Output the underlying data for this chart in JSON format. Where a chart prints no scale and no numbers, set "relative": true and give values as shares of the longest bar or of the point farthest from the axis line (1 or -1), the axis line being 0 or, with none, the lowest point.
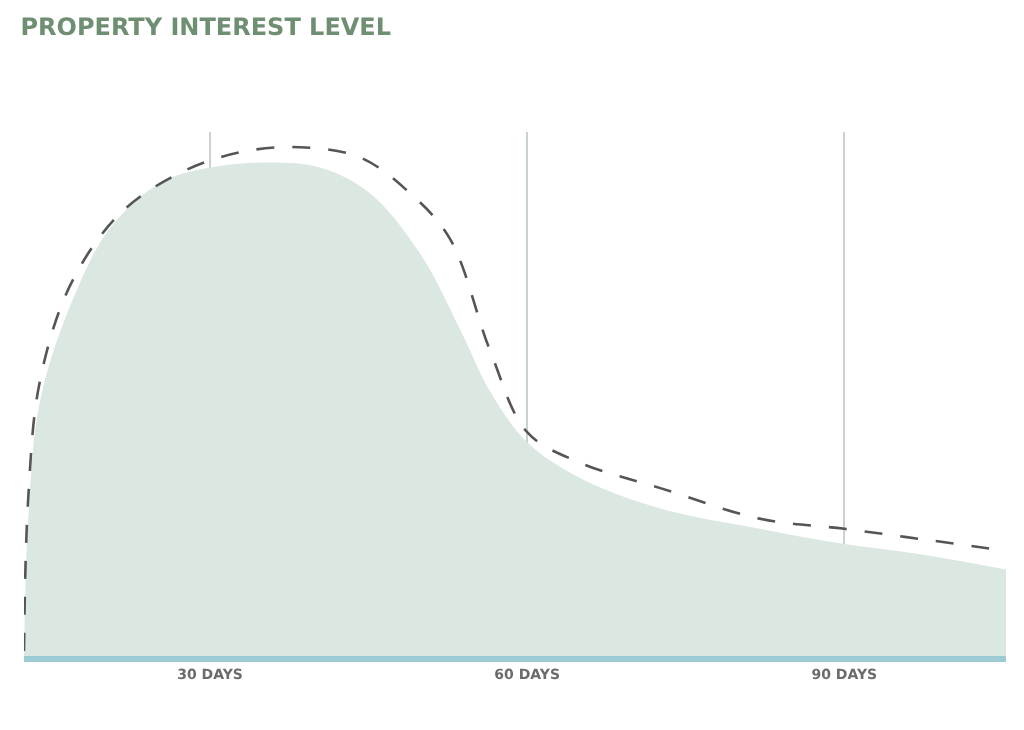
{
  "chart_data": {
    "type": "area",
    "title": "PROPERTY INTEREST LEVEL",
    "relative": true,
    "xlim": [
      12.4,
      105.3
    ],
    "xticks": [
      {
        "value": 30,
        "label": "30 DAYS"
      },
      {
        "value": 60,
        "label": "60 DAYS"
      },
      {
        "value": 90,
        "label": "90 DAYS"
      }
    ],
    "grid": "x",
    "tick_labels": "x",
    "series": [
      {
        "color": "#dbe7e1",
        "x": [
          12.4,
          12.8,
          13.9,
          16.8,
          20.5,
          25.3,
          30,
          35.7,
          40.4,
          45.1,
          49.9,
          53.7,
          56.5,
          60,
          65,
          72.6,
          82,
          90,
          97.2,
          105.3
        ],
        "values": [
          0,
          0.27,
          0.5,
          0.69,
          0.84,
          0.93,
          0.96,
          0.97,
          0.96,
          0.91,
          0.79,
          0.64,
          0.52,
          0.42,
          0.35,
          0.29,
          0.25,
          0.22,
          0.2,
          0.17
        ]
      },
      {
        "type": "line",
        "color": "#555555",
        "line_style": "dashed",
        "marker": "none",
        "x": [
          12.4,
          12.8,
          13.9,
          16.8,
          21.5,
          27.2,
          32.8,
          38.5,
          44.2,
          48.9,
          52.7,
          56.5,
          60,
          65,
          72.6,
          82,
          90,
          97.2,
          104.2
        ],
        "values": [
          0.01,
          0.31,
          0.54,
          0.73,
          0.87,
          0.95,
          0.99,
          1,
          0.98,
          0.91,
          0.82,
          0.6,
          0.44,
          0.38,
          0.33,
          0.27,
          0.25,
          0.23,
          0.21
        ]
      }
    ]
  }
}
